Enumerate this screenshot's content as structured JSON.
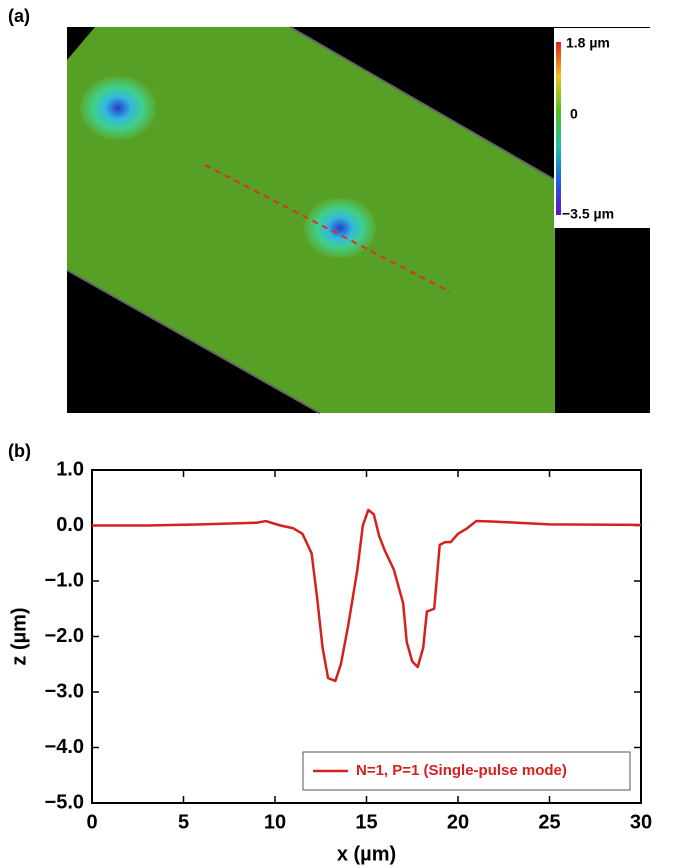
{
  "panel_labels": [
    "(a)",
    "(b)"
  ],
  "colorbar": {
    "labels": [
      "1.8 µm",
      "0",
      "−3.5 µm"
    ]
  },
  "chart_data": {
    "type": "line",
    "xlabel": "x (µm)",
    "ylabel": "z (µm)",
    "x": [
      0,
      3,
      6,
      9,
      9.5,
      10.3,
      11,
      11.5,
      12,
      12.3,
      12.6,
      12.9,
      13.3,
      13.6,
      14,
      14.5,
      14.8,
      15.1,
      15.4,
      15.7,
      16,
      16.5,
      17,
      17.2,
      17.5,
      17.8,
      18.1,
      18.3,
      18.7,
      19,
      19.3,
      19.6,
      20,
      20.5,
      21,
      22,
      25,
      30
    ],
    "series": [
      {
        "name": "N=1, P=1 (Single-pulse mode)",
        "color": "#d62020",
        "values": [
          0,
          0,
          0.02,
          0.05,
          0.08,
          0.0,
          -0.05,
          -0.15,
          -0.5,
          -1.3,
          -2.2,
          -2.75,
          -2.8,
          -2.5,
          -1.8,
          -0.8,
          0.0,
          0.28,
          0.2,
          -0.2,
          -0.45,
          -0.8,
          -1.4,
          -2.1,
          -2.45,
          -2.55,
          -2.2,
          -1.55,
          -1.5,
          -0.35,
          -0.3,
          -0.3,
          -0.15,
          -0.05,
          0.08,
          0.07,
          0.02,
          0.01
        ]
      }
    ],
    "xlim": [
      0,
      30
    ],
    "xticks": [
      0,
      5,
      10,
      15,
      20,
      25,
      30
    ],
    "ylim": [
      -5,
      1
    ],
    "yticks": [
      {
        "value": -5,
        "label": "−5.0"
      },
      {
        "value": -4,
        "label": "−4.0"
      },
      {
        "value": -3,
        "label": "−3.0"
      },
      {
        "value": -2,
        "label": "−2.0"
      },
      {
        "value": -1,
        "label": "−1.0"
      },
      {
        "value": 0,
        "label": "0.0"
      },
      {
        "value": 1,
        "label": "1.0"
      }
    ],
    "legend": "lower right"
  }
}
